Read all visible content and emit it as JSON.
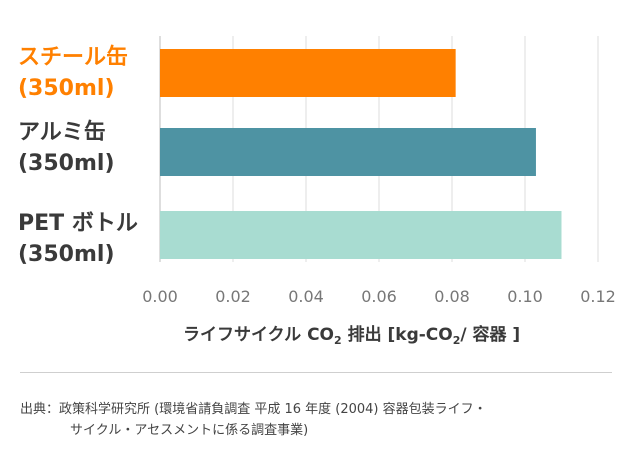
{
  "chart_data": {
    "type": "bar",
    "orientation": "horizontal",
    "categories": [
      {
        "line1": "スチール缶",
        "line2": "(350ml)"
      },
      {
        "line1": "アルミ缶",
        "line2": "(350ml)"
      },
      {
        "line1": "PET ボトル",
        "line2": "(350ml)"
      }
    ],
    "values": [
      0.081,
      0.103,
      0.11
    ],
    "colors": [
      "#ff8000",
      "#4e93a3",
      "#a8dcd1"
    ],
    "label_colors": [
      "#ff8000",
      "#3a3a3a",
      "#3a3a3a"
    ],
    "xlim": [
      0,
      0.12
    ],
    "xticks": [
      "0.00",
      "0.02",
      "0.04",
      "0.06",
      "0.08",
      "0.10",
      "0.12"
    ],
    "xlabel": {
      "prefix": "ライフサイクル CO",
      "sub1": "2",
      "middle": " 排出 [kg-CO",
      "sub2": "2",
      "suffix": "/ 容器 ]"
    },
    "grid": true
  },
  "source": {
    "line1": "出典：政策科学研究所 (環境省請負調査 平成 16 年度 (2004) 容器包装ライフ・",
    "line2": "サイクル・アセスメントに係る調査事業)"
  }
}
